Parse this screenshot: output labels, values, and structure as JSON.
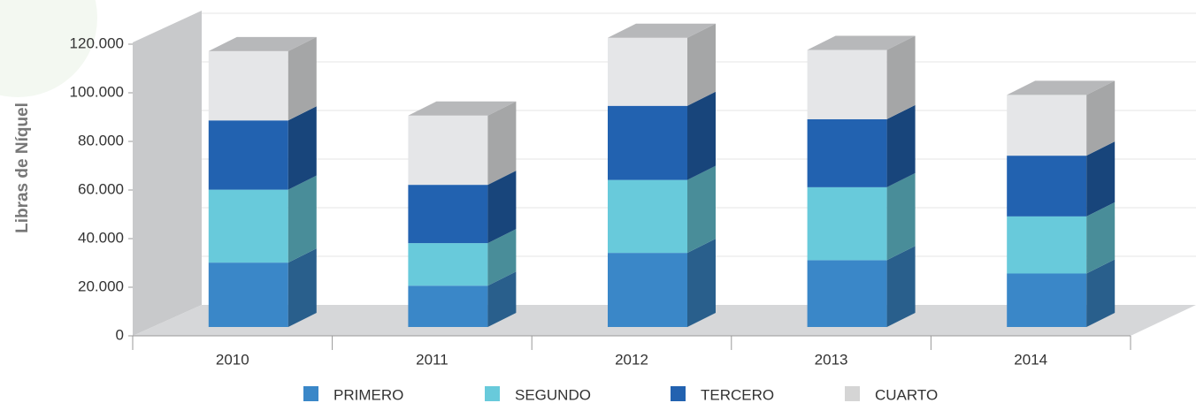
{
  "chart_data": {
    "type": "bar",
    "stacked": true,
    "y_label": "Libras de Níquel",
    "categories": [
      "2010",
      "2011",
      "2012",
      "2013",
      "2014"
    ],
    "series": [
      {
        "name": "PRIMERO",
        "color": "#3a87c8",
        "values": [
          26500,
          17000,
          30500,
          27500,
          22000
        ]
      },
      {
        "name": "SEGUNDO",
        "color": "#68cadb",
        "values": [
          30000,
          17500,
          30000,
          30000,
          23500
        ]
      },
      {
        "name": "TERCERO",
        "color": "#2262b0",
        "values": [
          28500,
          24000,
          30500,
          28000,
          25000
        ]
      },
      {
        "name": "CUARTO",
        "color": "#e5e6e8",
        "values": [
          28500,
          28500,
          28000,
          28500,
          25000
        ]
      }
    ],
    "ylim": [
      0,
      120000
    ],
    "yticks": [
      0,
      {
        "value": 20000,
        "label": "20.000"
      },
      {
        "value": 40000,
        "label": "40.000"
      },
      {
        "value": 60000,
        "label": "60.000"
      },
      {
        "value": 80000,
        "label": "80.000"
      },
      {
        "value": 100000,
        "label": "100.000"
      },
      {
        "value": 120000,
        "label": "120.000"
      }
    ],
    "grid": true,
    "legend": "bottom"
  }
}
